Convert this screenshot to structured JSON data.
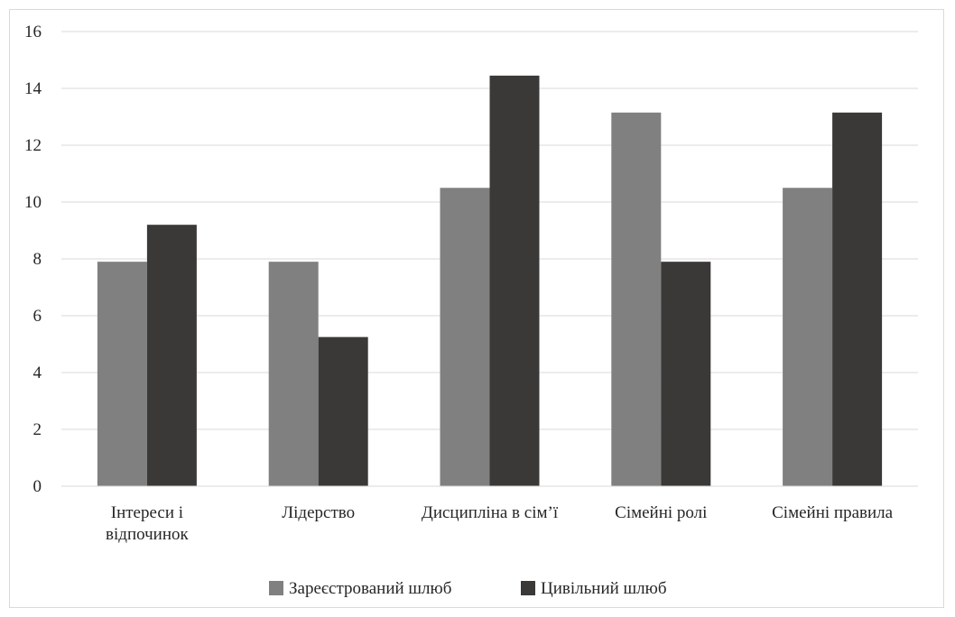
{
  "chart_data": {
    "type": "bar",
    "categories": [
      "Інтереси і відпочинок",
      "Лідерство",
      "Дисципліна в сім’ї",
      "Сімейні ролі",
      "Сімейні правила"
    ],
    "category_lines": [
      [
        "Інтереси і",
        "відпочинок"
      ],
      [
        "Лідерство"
      ],
      [
        "Дисципліна в сім’ї"
      ],
      [
        "Сімейні ролі"
      ],
      [
        "Сімейні правила"
      ]
    ],
    "series": [
      {
        "name": "Зареєстрований шлюб",
        "color": "#808080",
        "values": [
          7.9,
          7.9,
          10.5,
          13.15,
          10.5
        ]
      },
      {
        "name": "Цивільний шлюб",
        "color": "#3a3938",
        "values": [
          9.2,
          5.25,
          14.45,
          7.9,
          13.15
        ]
      }
    ],
    "yticks": [
      0,
      2,
      4,
      6,
      8,
      10,
      12,
      14,
      16
    ],
    "ylim": [
      0,
      16
    ],
    "grid": true,
    "legend_position": "bottom",
    "title": "",
    "xlabel": "",
    "ylabel": ""
  }
}
